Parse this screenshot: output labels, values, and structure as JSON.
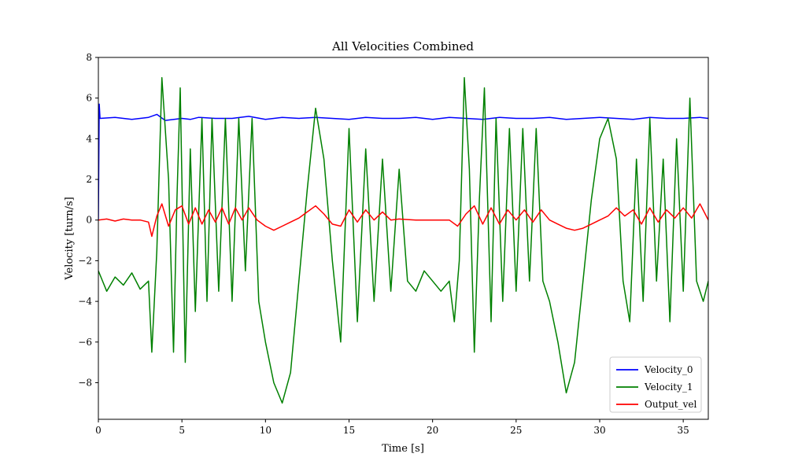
{
  "chart_data": {
    "type": "line",
    "title": "All Velocities Combined",
    "xlabel": "Time [s]",
    "ylabel": "Velocity [turn/s]",
    "xlim": [
      0,
      36.5
    ],
    "ylim": [
      -9.8,
      8
    ],
    "xticks": [
      0,
      5,
      10,
      15,
      20,
      25,
      30,
      35
    ],
    "yticks": [
      -8,
      -6,
      -4,
      -2,
      0,
      2,
      4,
      6,
      8
    ],
    "xtick_labels": [
      "0",
      "5",
      "10",
      "15",
      "20",
      "25",
      "30",
      "35"
    ],
    "ytick_labels": [
      "−8",
      "−6",
      "−4",
      "−2",
      "0",
      "2",
      "4",
      "6",
      "8"
    ],
    "grid": false,
    "legend_position": "lower-right",
    "series": [
      {
        "name": "Velocity_0",
        "color": "#0000ff",
        "x": [
          0,
          0.05,
          0.1,
          1,
          2,
          3,
          3.5,
          4,
          5,
          5.5,
          6,
          7,
          8,
          9,
          10,
          11,
          12,
          13,
          14,
          15,
          16,
          17,
          18,
          19,
          20,
          21,
          22,
          23,
          24,
          25,
          26,
          27,
          28,
          29,
          30,
          31,
          32,
          33,
          34,
          35,
          36,
          36.5
        ],
        "y": [
          0,
          5.7,
          5.0,
          5.05,
          4.95,
          5.05,
          5.2,
          4.9,
          5.0,
          4.95,
          5.05,
          5.0,
          5.0,
          5.1,
          4.95,
          5.05,
          5.0,
          5.05,
          5.0,
          4.95,
          5.05,
          5.0,
          5.0,
          5.05,
          4.95,
          5.05,
          5.0,
          4.95,
          5.05,
          5.0,
          5.0,
          5.05,
          4.95,
          5.0,
          5.05,
          5.0,
          4.95,
          5.05,
          5.0,
          5.0,
          5.05,
          5.0
        ]
      },
      {
        "name": "Velocity_1",
        "color": "#008000",
        "x": [
          0,
          0.5,
          1,
          1.5,
          2,
          2.5,
          3,
          3.2,
          3.5,
          3.8,
          4.2,
          4.5,
          4.7,
          4.9,
          5.2,
          5.5,
          5.8,
          6.2,
          6.5,
          6.8,
          7.2,
          7.6,
          8.0,
          8.4,
          8.8,
          9.2,
          9.6,
          10.0,
          10.5,
          11.0,
          11.5,
          12.0,
          12.5,
          13.0,
          13.5,
          14.0,
          14.5,
          15.0,
          15.5,
          16.0,
          16.5,
          17.0,
          17.5,
          18.0,
          18.5,
          19.0,
          19.5,
          20.0,
          20.5,
          21.0,
          21.3,
          21.6,
          21.9,
          22.2,
          22.5,
          22.8,
          23.1,
          23.5,
          23.8,
          24.2,
          24.6,
          25.0,
          25.4,
          25.8,
          26.2,
          26.6,
          27.0,
          27.5,
          28.0,
          28.5,
          29.0,
          29.5,
          30.0,
          30.5,
          31.0,
          31.4,
          31.8,
          32.2,
          32.6,
          33.0,
          33.4,
          33.8,
          34.2,
          34.6,
          35.0,
          35.4,
          35.8,
          36.2,
          36.5
        ],
        "y": [
          -2.5,
          -3.5,
          -2.8,
          -3.2,
          -2.6,
          -3.4,
          -3.0,
          -6.5,
          -1.5,
          7.0,
          2.0,
          -6.5,
          1.0,
          6.5,
          -7.0,
          3.5,
          -4.5,
          5.0,
          -4.0,
          5.0,
          -3.5,
          5.0,
          -4.0,
          5.0,
          -2.5,
          5.0,
          -4.0,
          -6.0,
          -8.0,
          -9.0,
          -7.5,
          -3.0,
          1.5,
          5.5,
          3.0,
          -2.0,
          -6.0,
          4.5,
          -5.0,
          3.5,
          -4.0,
          3.0,
          -3.5,
          2.5,
          -3.0,
          -3.5,
          -2.5,
          -3.0,
          -3.5,
          -3.0,
          -5.0,
          -2.0,
          7.0,
          2.5,
          -6.5,
          1.0,
          6.5,
          -5.0,
          5.0,
          -4.0,
          4.5,
          -3.5,
          4.5,
          -3.0,
          4.5,
          -3.0,
          -4.0,
          -6.0,
          -8.5,
          -7.0,
          -3.0,
          1.0,
          4.0,
          5.0,
          3.0,
          -3.0,
          -5.0,
          3.0,
          -4.0,
          5.0,
          -3.0,
          3.0,
          -5.0,
          4.0,
          -3.5,
          6.0,
          -3.0,
          -4.0,
          -3.0
        ]
      },
      {
        "name": "Output_vel",
        "color": "#ff0000",
        "x": [
          0,
          0.5,
          1,
          1.5,
          2,
          2.5,
          3,
          3.2,
          3.5,
          3.8,
          4.2,
          4.6,
          5.0,
          5.4,
          5.8,
          6.2,
          6.6,
          7.0,
          7.4,
          7.8,
          8.2,
          8.6,
          9.0,
          9.5,
          10.0,
          10.5,
          11.0,
          11.5,
          12.0,
          12.5,
          13.0,
          13.5,
          14.0,
          14.5,
          15.0,
          15.5,
          16.0,
          16.5,
          17.0,
          17.5,
          18.0,
          19.0,
          20.0,
          21.0,
          21.5,
          22.0,
          22.5,
          23.0,
          23.5,
          24.0,
          24.5,
          25.0,
          25.5,
          26.0,
          26.5,
          27.0,
          27.5,
          28.0,
          28.5,
          29.0,
          29.5,
          30.0,
          30.5,
          31.0,
          31.5,
          32.0,
          32.5,
          33.0,
          33.5,
          34.0,
          34.5,
          35.0,
          35.5,
          36.0,
          36.5
        ],
        "y": [
          0.0,
          0.05,
          -0.05,
          0.05,
          0.0,
          0.0,
          -0.1,
          -0.8,
          0.2,
          0.8,
          -0.3,
          0.5,
          0.7,
          -0.2,
          0.6,
          -0.2,
          0.5,
          -0.1,
          0.6,
          -0.2,
          0.6,
          0.0,
          0.6,
          0.0,
          -0.3,
          -0.5,
          -0.3,
          -0.1,
          0.1,
          0.4,
          0.7,
          0.3,
          -0.2,
          -0.3,
          0.5,
          -0.1,
          0.5,
          0.0,
          0.4,
          0.0,
          0.05,
          0.0,
          0.0,
          0.0,
          -0.3,
          0.3,
          0.7,
          -0.2,
          0.6,
          -0.2,
          0.5,
          0.0,
          0.5,
          -0.1,
          0.5,
          0.0,
          -0.2,
          -0.4,
          -0.5,
          -0.4,
          -0.2,
          0.0,
          0.2,
          0.6,
          0.2,
          0.5,
          -0.2,
          0.6,
          -0.1,
          0.5,
          0.1,
          0.6,
          0.1,
          0.8,
          0.0
        ]
      }
    ]
  }
}
